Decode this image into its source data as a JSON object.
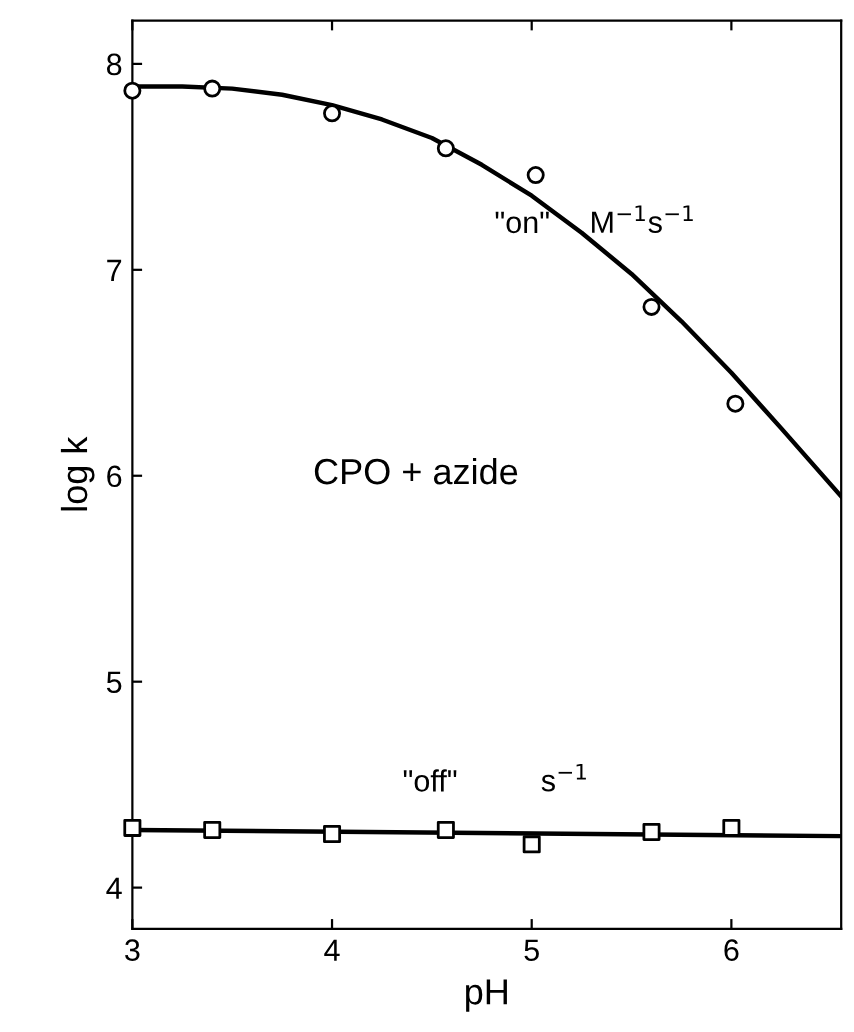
{
  "chart_data": {
    "type": "scatter",
    "xlabel": "pH",
    "ylabel": "log k",
    "xlim": [
      3,
      6.55
    ],
    "ylim": [
      3.8,
      8.21
    ],
    "xticks": [
      3,
      4,
      5,
      6
    ],
    "yticks": [
      4,
      5,
      6,
      7,
      8
    ],
    "grid": false,
    "legend": false,
    "series": [
      {
        "marker": "circle",
        "color": "#000000",
        "x": [
          3,
          3.4,
          4,
          4.57,
          5.02,
          5.6,
          6.02
        ],
        "values": [
          7.87,
          7.88,
          7.76,
          7.59,
          7.46,
          6.82,
          6.35
        ]
      },
      {
        "marker": "square",
        "color": "#000000",
        "x": [
          3,
          3.4,
          4,
          4.57,
          5,
          5.6,
          6
        ],
        "values": [
          4.29,
          4.28,
          4.26,
          4.28,
          4.21,
          4.27,
          4.29
        ]
      },
      {
        "type": "line",
        "marker": "none",
        "line_style": "solid",
        "color": "#000000",
        "x": [
          3,
          3.25,
          3.5,
          3.75,
          4,
          4.25,
          4.5,
          4.75,
          5,
          5.25,
          5.5,
          5.75,
          6,
          6.25,
          6.55
        ],
        "values": [
          7.89,
          7.89,
          7.88,
          7.85,
          7.8,
          7.73,
          7.64,
          7.51,
          7.36,
          7.18,
          6.98,
          6.75,
          6.5,
          6.23,
          5.9
        ]
      },
      {
        "type": "line",
        "marker": "none",
        "line_style": "solid",
        "color": "#000000",
        "x": [
          3,
          6.55
        ],
        "values": [
          4.28,
          4.25
        ]
      }
    ],
    "annotations": [
      "\"on\"",
      "M$^{−1}$s$^{−1}$",
      "CPO + azide",
      "\"off\"",
      "s$^{−1}$"
    ]
  }
}
